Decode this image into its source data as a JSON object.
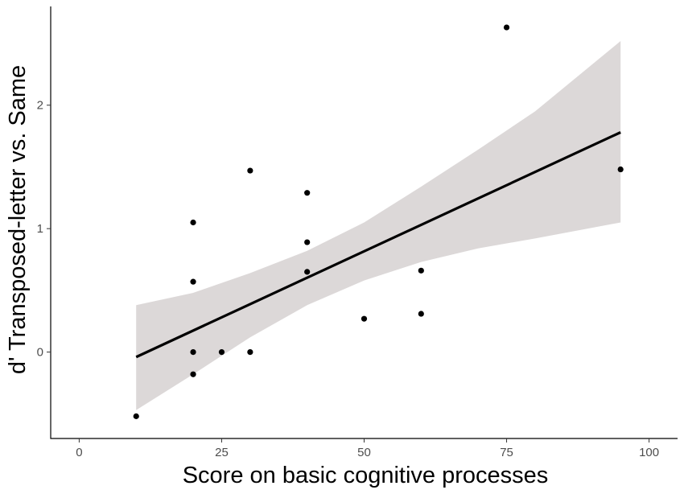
{
  "chart_data": {
    "type": "scatter",
    "title": "",
    "xlabel": "Score on basic cognitive processes",
    "ylabel": "d' Transposed-letter vs. Same",
    "xlim": [
      -5,
      105
    ],
    "ylim": [
      -0.7,
      2.8
    ],
    "x_ticks": [
      0,
      25,
      50,
      75,
      100
    ],
    "y_ticks": [
      0,
      1,
      2
    ],
    "grid": false,
    "legend": "none",
    "points": [
      {
        "x": 10,
        "y": -0.52
      },
      {
        "x": 20,
        "y": 1.05
      },
      {
        "x": 20,
        "y": 0.57
      },
      {
        "x": 20,
        "y": 0.0
      },
      {
        "x": 20,
        "y": -0.18
      },
      {
        "x": 25,
        "y": 0.0
      },
      {
        "x": 30,
        "y": 1.47
      },
      {
        "x": 30,
        "y": 0.0
      },
      {
        "x": 40,
        "y": 1.29
      },
      {
        "x": 40,
        "y": 0.89
      },
      {
        "x": 40,
        "y": 0.65
      },
      {
        "x": 50,
        "y": 0.27
      },
      {
        "x": 60,
        "y": 0.66
      },
      {
        "x": 60,
        "y": 0.31
      },
      {
        "x": 75,
        "y": 2.63
      },
      {
        "x": 95,
        "y": 1.48
      }
    ],
    "regression": {
      "x": [
        10,
        95
      ],
      "y": [
        -0.04,
        1.78
      ]
    },
    "confidence_band": [
      {
        "x": 10,
        "lower": -0.47,
        "upper": 0.38
      },
      {
        "x": 20,
        "lower": -0.18,
        "upper": 0.48
      },
      {
        "x": 30,
        "lower": 0.12,
        "upper": 0.64
      },
      {
        "x": 40,
        "lower": 0.38,
        "upper": 0.82
      },
      {
        "x": 50,
        "lower": 0.58,
        "upper": 1.05
      },
      {
        "x": 60,
        "lower": 0.73,
        "upper": 1.34
      },
      {
        "x": 70,
        "lower": 0.84,
        "upper": 1.64
      },
      {
        "x": 80,
        "lower": 0.92,
        "upper": 1.95
      },
      {
        "x": 95,
        "lower": 1.05,
        "upper": 2.52
      }
    ],
    "colors": {
      "points": "#000000",
      "line": "#000000",
      "band": "#dcd8d8",
      "axis": "#000000"
    }
  }
}
